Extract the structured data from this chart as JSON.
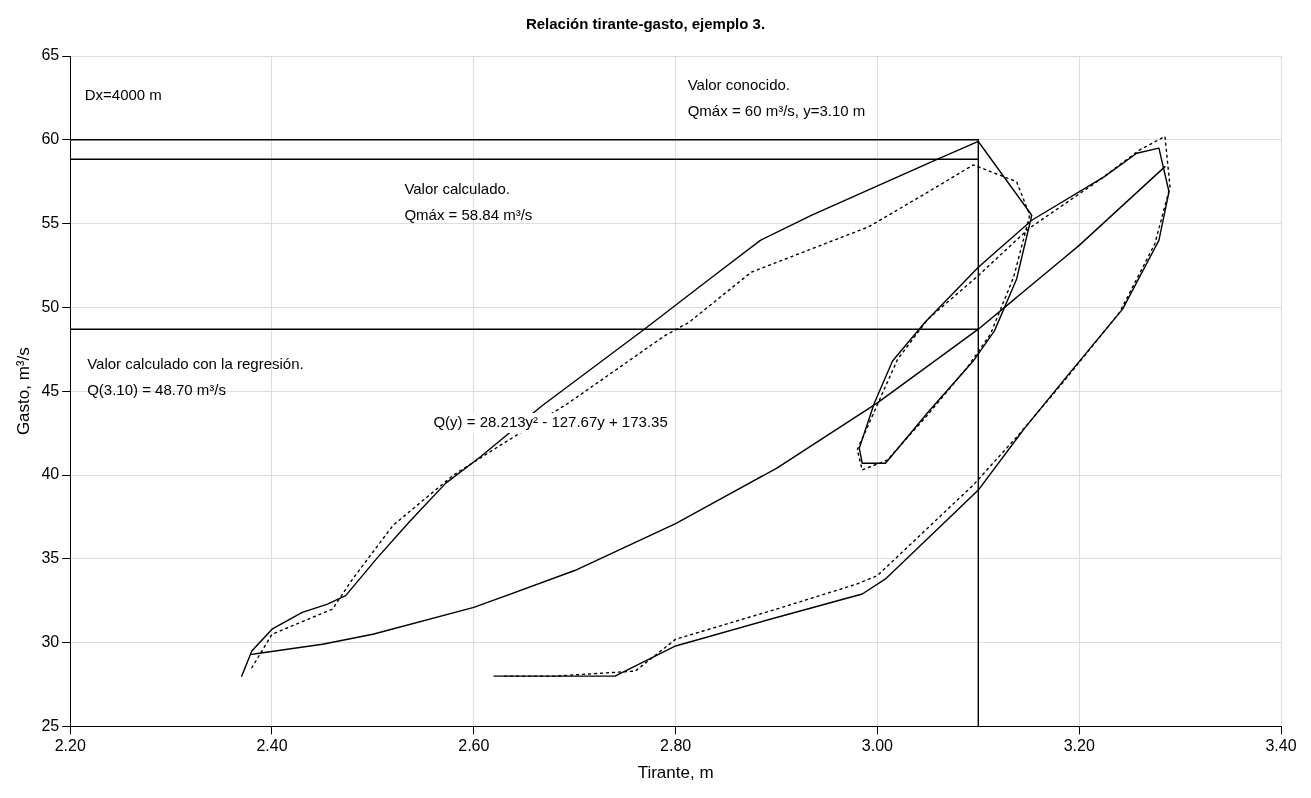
{
  "chart_data": {
    "type": "line",
    "title": "Relación tirante-gasto, ejemplo 3.",
    "xlabel": "Tirante, m",
    "ylabel": "Gasto, m³/s",
    "xlim": [
      2.2,
      3.4
    ],
    "xticks": [
      {
        "value": 2.2,
        "label": "2.20"
      },
      {
        "value": 2.4,
        "label": "2.40"
      },
      {
        "value": 2.6,
        "label": "2.60"
      },
      {
        "value": 2.8,
        "label": "2.80"
      },
      {
        "value": 3.0,
        "label": "3.00"
      },
      {
        "value": 3.2,
        "label": "3.20"
      },
      {
        "value": 3.4,
        "label": "3.40"
      }
    ],
    "ylim": [
      25,
      65
    ],
    "yticks": [
      25,
      30,
      35,
      40,
      45,
      50,
      55,
      60,
      65
    ],
    "grid": true,
    "legend": false,
    "marker": "none",
    "series": [
      {
        "color": "#000000",
        "line_style": "solid",
        "x": [
          2.37,
          2.38,
          2.4,
          2.43,
          2.455,
          2.473,
          2.505,
          2.536,
          2.572,
          2.607,
          2.667,
          2.769,
          2.836,
          2.884,
          2.935,
          3.058,
          3.1,
          3.153,
          3.138,
          3.116,
          3.095,
          3.051,
          3.008,
          2.985,
          2.982,
          2.997,
          3.015,
          3.047,
          3.1,
          3.153,
          3.225,
          3.257,
          3.279,
          3.289,
          3.279,
          3.243,
          3.188,
          3.146,
          3.1,
          3.008,
          2.985,
          2.9,
          2.8,
          2.74,
          2.62
        ],
        "values": [
          28,
          29.5,
          30.8,
          31.8,
          32.3,
          32.8,
          35.1,
          37.2,
          39.5,
          41.1,
          44.1,
          48.7,
          51.8,
          54.0,
          55.5,
          58.8,
          59.9,
          55.5,
          51.7,
          48.6,
          46.8,
          43.8,
          40.7,
          40.7,
          41.6,
          44.3,
          46.8,
          49.1,
          52.4,
          55.2,
          57.8,
          59.2,
          59.5,
          56.9,
          54.0,
          49.9,
          45.9,
          42.8,
          39.1,
          33.8,
          32.9,
          31.5,
          29.8,
          28,
          28
        ]
      },
      {
        "color": "#000000",
        "line_style": "dotted",
        "x": [
          2.38,
          2.4,
          2.46,
          2.48,
          2.52,
          2.58,
          2.627,
          2.694,
          2.789,
          2.813,
          2.875,
          2.991,
          3.045,
          3.095,
          3.138,
          3.151,
          3.135,
          3.112,
          3.09,
          3.05,
          3.01,
          2.985,
          2.98,
          3.0,
          3.02,
          3.05,
          3.1,
          3.15,
          3.22,
          3.26,
          3.285,
          3.29,
          3.275,
          3.24,
          3.185,
          3.14,
          3.095,
          3.0,
          2.98,
          2.9,
          2.8,
          2.76,
          2.68,
          2.63
        ],
        "values": [
          28.5,
          30.5,
          32,
          33.8,
          37,
          40,
          41.8,
          44.3,
          48.3,
          49.1,
          52.1,
          54.8,
          56.7,
          58.5,
          57.5,
          55.5,
          51.8,
          48.4,
          46.5,
          43.6,
          40.9,
          40.3,
          41.5,
          44.2,
          46.9,
          49.3,
          51.9,
          54.7,
          57.6,
          59.4,
          60.2,
          57.2,
          53.8,
          49.7,
          45.6,
          42.4,
          39.4,
          34.0,
          33.5,
          32.0,
          30.2,
          28.3,
          28.0,
          28.0
        ]
      },
      {
        "color": "#000000",
        "line_style": "solid",
        "x": [
          2.38,
          2.45,
          2.5,
          2.6,
          2.7,
          2.8,
          2.9,
          3.0,
          3.1,
          3.2,
          3.285
        ],
        "values": [
          29.3,
          29.9,
          30.5,
          32.1,
          34.3,
          37.1,
          40.4,
          44.3,
          48.7,
          53.7,
          58.4
        ]
      },
      {
        "color": "#000000",
        "line_style": "solid",
        "x": [
          2.2,
          3.1
        ],
        "values": [
          60,
          60
        ]
      },
      {
        "color": "#000000",
        "line_style": "solid",
        "x": [
          2.2,
          3.1
        ],
        "values": [
          58.84,
          58.84
        ]
      },
      {
        "color": "#000000",
        "line_style": "solid",
        "x": [
          2.2,
          3.1
        ],
        "values": [
          48.7,
          48.7
        ]
      },
      {
        "color": "#000000",
        "line_style": "solid",
        "x": [
          3.1,
          3.1
        ],
        "values": [
          25,
          60
        ]
      }
    ],
    "annotations": [
      "Dx=4000 m",
      "Valor conocido.\nQmáx = 60 m³/s, y=3.10 m",
      "Valor calculado.\nQmáx = 58.84 m³/s",
      "Valor calculado con la regresión.\nQ(3.10) = 48.70 m³/s",
      "Q(y) = 28.213y² - 127.67y + 173.35"
    ]
  }
}
